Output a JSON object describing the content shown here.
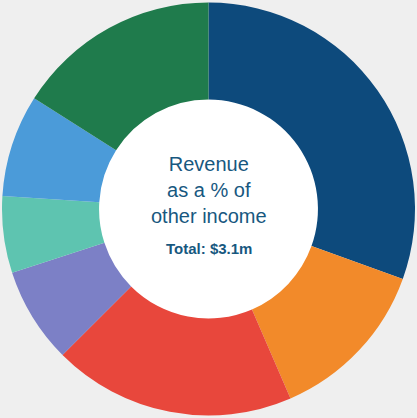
{
  "chart_data": {
    "type": "pie",
    "title": "Revenue as a % of other income",
    "subtitle": "Total: $3.1m",
    "categories": [
      null,
      null,
      null,
      null,
      null,
      null,
      null
    ],
    "values": [
      30.5,
      13,
      19,
      7.5,
      6,
      8,
      16
    ],
    "colors": [
      "#0d4a7c",
      "#f28a2a",
      "#e8473c",
      "#7c80c6",
      "#5ec4b0",
      "#4b9bd9",
      "#1f7b4c"
    ]
  }
}
